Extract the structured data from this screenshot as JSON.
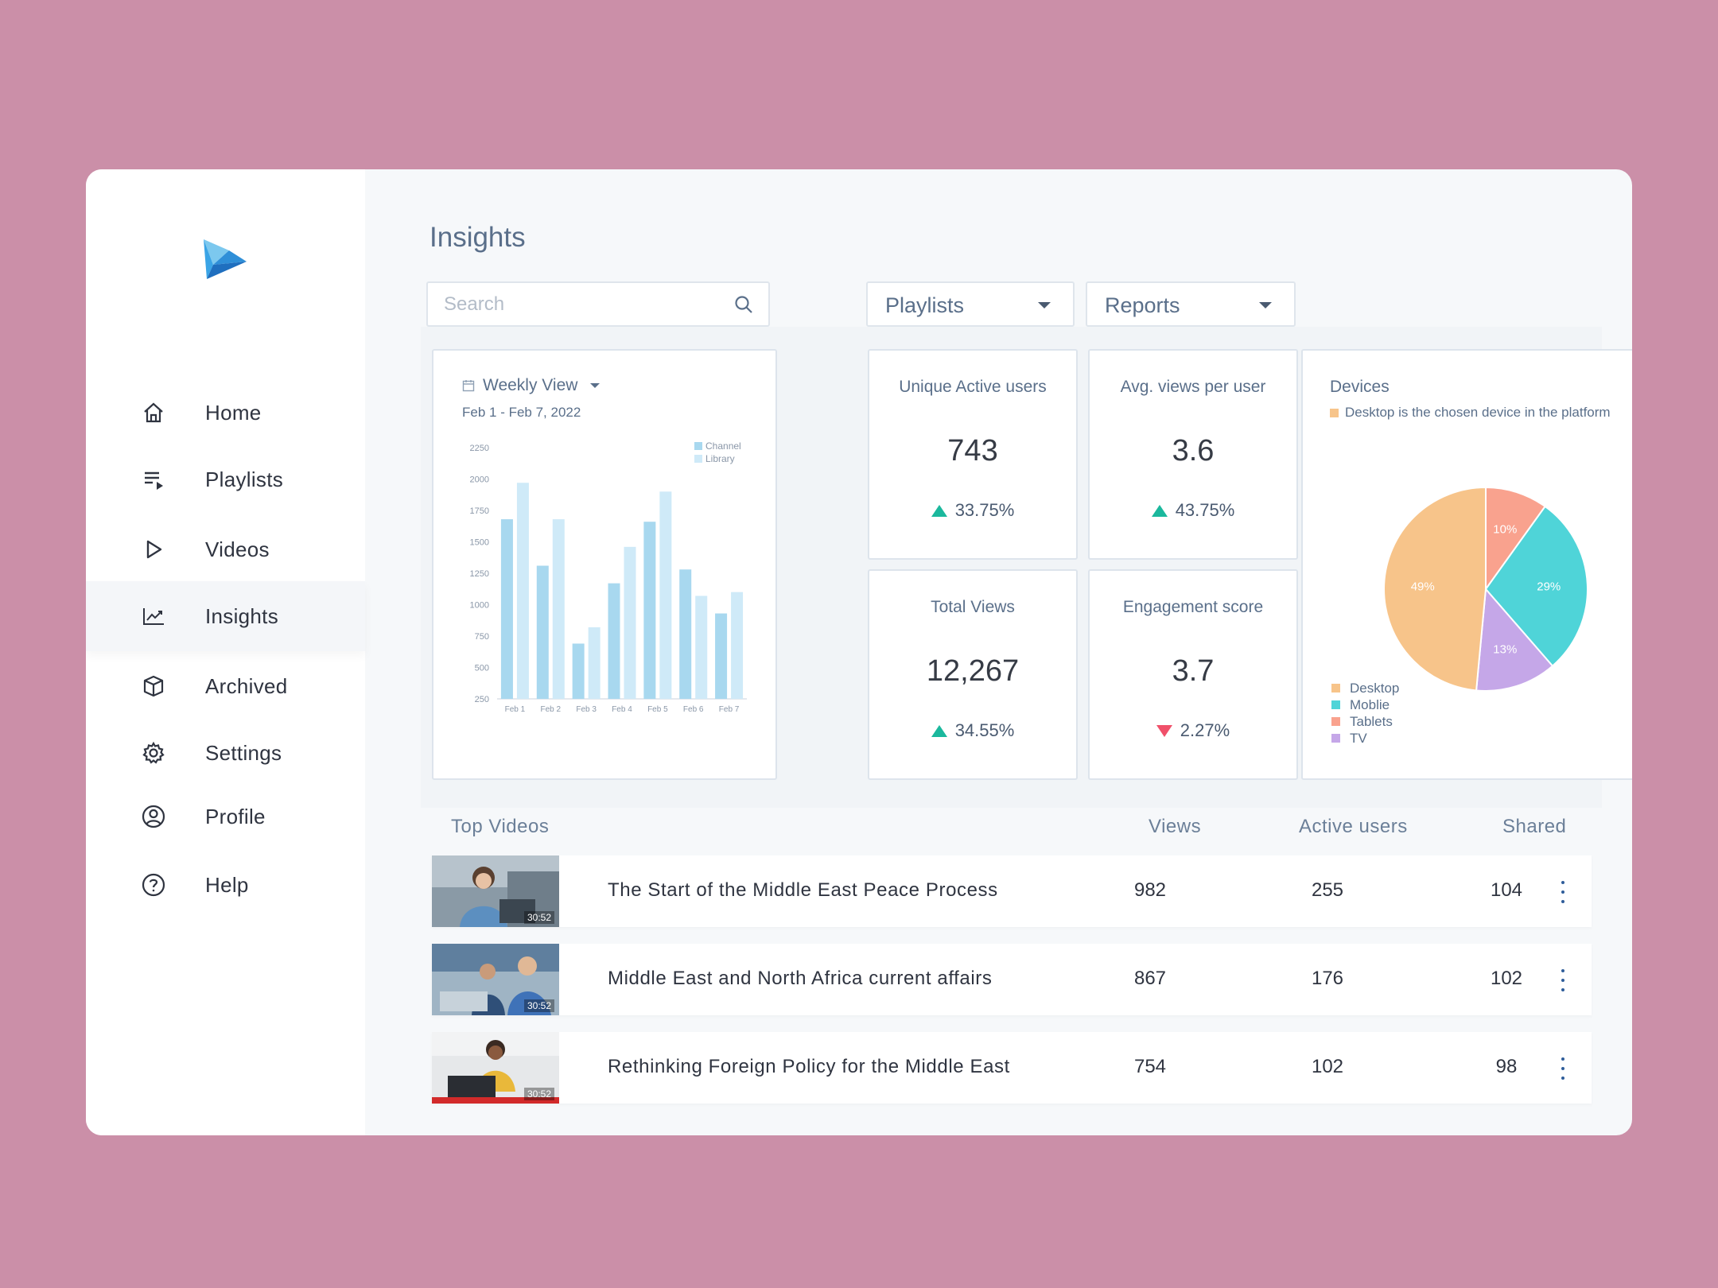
{
  "nav": {
    "items": [
      {
        "label": "Home",
        "icon": "home-icon"
      },
      {
        "label": "Playlists",
        "icon": "playlist-icon"
      },
      {
        "label": "Videos",
        "icon": "play-icon"
      },
      {
        "label": "Insights",
        "icon": "chart-line-icon",
        "active": true
      },
      {
        "label": "Archived",
        "icon": "box-icon"
      },
      {
        "label": "Settings",
        "icon": "gear-icon"
      },
      {
        "label": "Profile",
        "icon": "user-circle-icon"
      },
      {
        "label": "Help",
        "icon": "help-circle-icon"
      }
    ]
  },
  "page": {
    "title": "Insights"
  },
  "toolbar": {
    "search_placeholder": "Search",
    "playlists_label": "Playlists",
    "reports_label": "Reports"
  },
  "weekly": {
    "title": "Weekly View",
    "date_range": "Feb 1 - Feb 7, 2022"
  },
  "stats": {
    "unique_active": {
      "title": "Unique Active users",
      "value": "743",
      "change": "33.75%",
      "direction": "up"
    },
    "avg_views": {
      "title": "Avg. views per user",
      "value": "3.6",
      "change": "43.75%",
      "direction": "up"
    },
    "total_views": {
      "title": "Total Views",
      "value": "12,267",
      "change": "34.55%",
      "direction": "up"
    },
    "engagement": {
      "title": "Engagement score",
      "value": "3.7",
      "change": "2.27%",
      "direction": "down"
    }
  },
  "devices": {
    "title": "Devices",
    "subtitle": "Desktop is the chosen device in the platform",
    "legend": [
      "Desktop",
      "Moblie",
      "Tablets",
      "TV"
    ]
  },
  "chart_data": [
    {
      "type": "bar",
      "categories": [
        "Feb 1",
        "Feb 2",
        "Feb 3",
        "Feb 4",
        "Feb 5",
        "Feb 6",
        "Feb 7"
      ],
      "series": [
        {
          "name": "Channel",
          "values": [
            1680,
            1310,
            690,
            1170,
            1660,
            1280,
            930
          ],
          "color": "#a8d8ef"
        },
        {
          "name": "Library",
          "values": [
            1970,
            1680,
            820,
            1460,
            1900,
            1070,
            1100
          ],
          "color": "#cfeaf8"
        }
      ],
      "yticks": [
        250,
        500,
        750,
        1000,
        1250,
        1500,
        1750,
        2000,
        2250
      ],
      "ylim": [
        250,
        2250
      ],
      "legend": "top-right"
    },
    {
      "type": "pie",
      "labels": [
        "Desktop",
        "Moblie",
        "Tablets",
        "TV"
      ],
      "values": [
        49,
        29,
        10,
        13
      ],
      "value_labels": [
        "49%",
        "29%",
        "10%",
        "13%"
      ],
      "colors": [
        "#f7c48a",
        "#4fd4d8",
        "#f9a28e",
        "#c5a7e8"
      ]
    }
  ],
  "table": {
    "headers": {
      "title": "Top Videos",
      "views": "Views",
      "active": "Active users",
      "shared": "Shared"
    },
    "rows": [
      {
        "title": "The Start of the Middle East Peace Process",
        "views": "982",
        "active": "255",
        "shared": "104",
        "duration": "30:52"
      },
      {
        "title": "Middle East and North Africa current affairs",
        "views": "867",
        "active": "176",
        "shared": "102",
        "duration": "30:52"
      },
      {
        "title": "Rethinking Foreign Policy for the Middle East",
        "views": "754",
        "active": "102",
        "shared": "98",
        "duration": "30:52"
      }
    ]
  }
}
